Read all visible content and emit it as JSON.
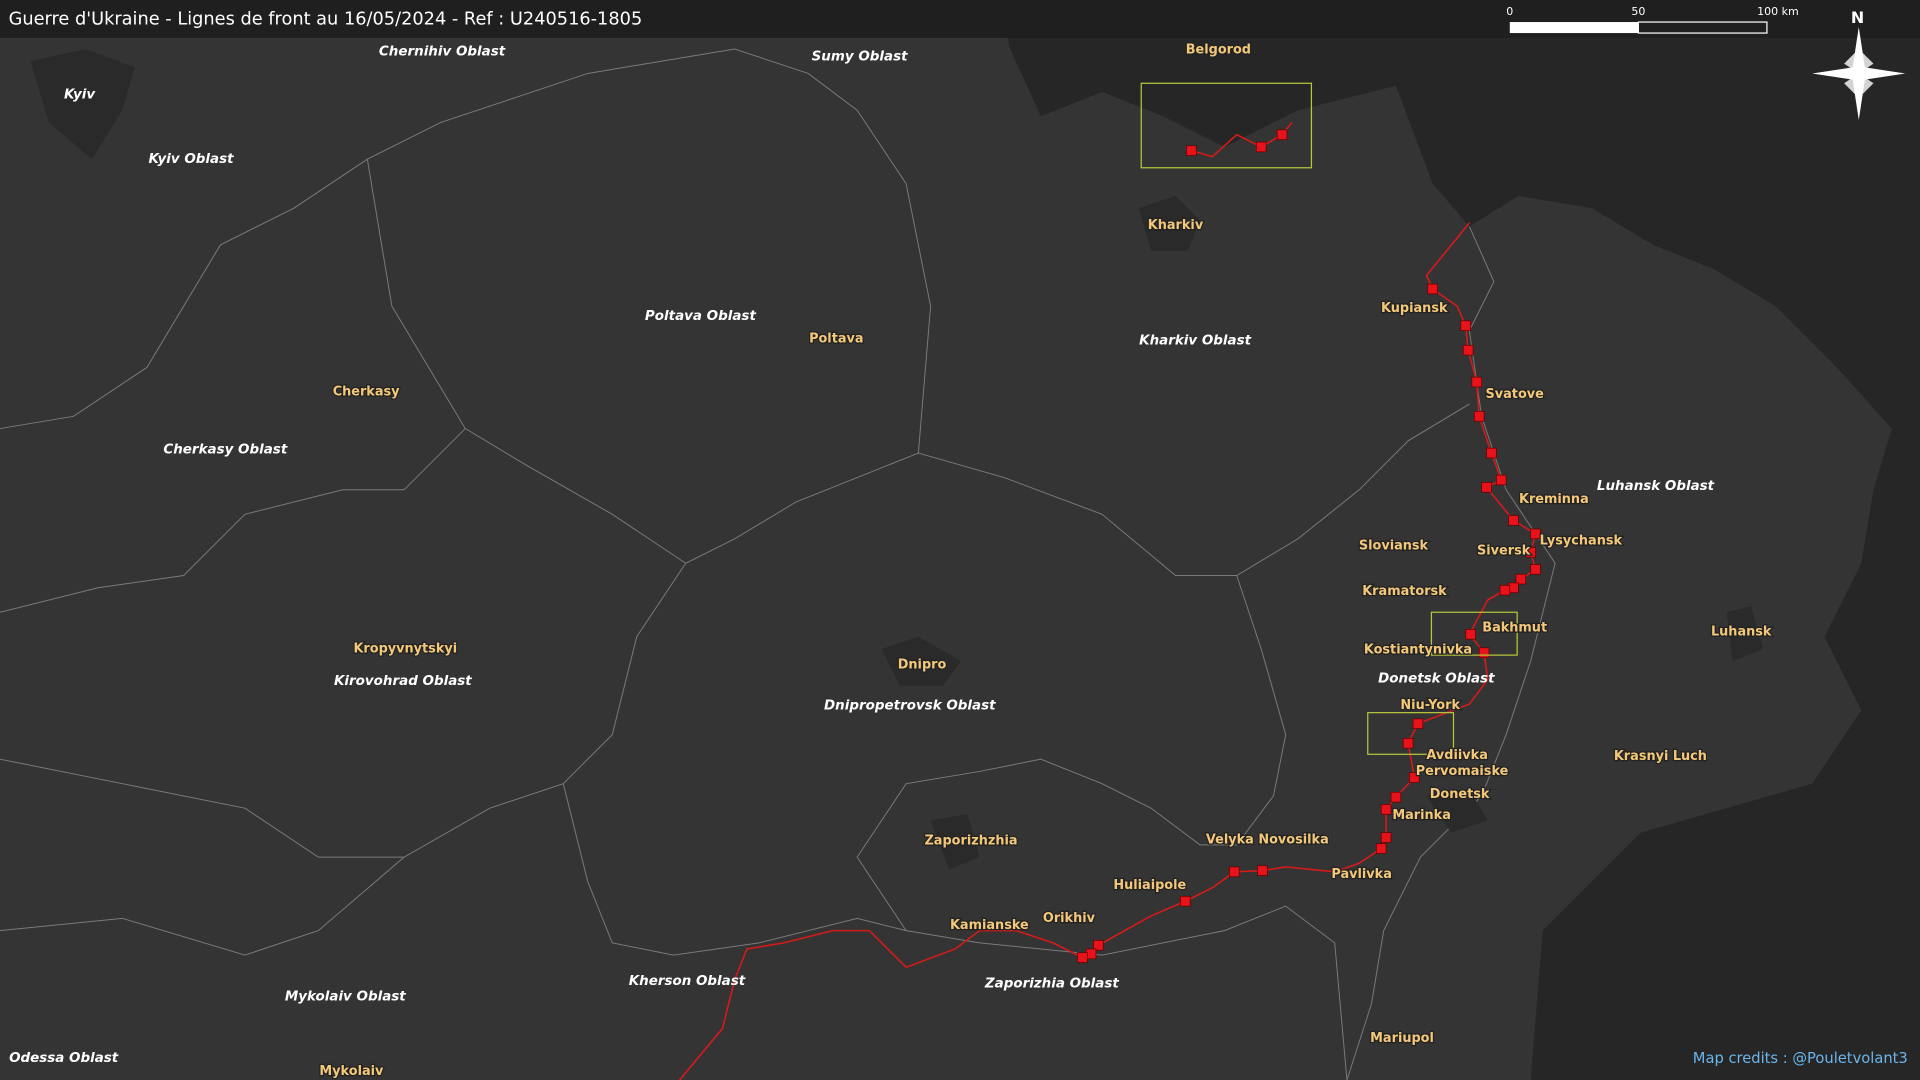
{
  "header": {
    "title": "Guerre d'Ukraine - Lignes de front au 16/05/2024 - Ref : U240516-1805"
  },
  "scale_bar": {
    "labels": [
      "0",
      "50",
      "100 km"
    ]
  },
  "compass": {
    "label": "N"
  },
  "oblasts": [
    "Kyiv",
    "Chernihiv Oblast",
    "Sumy Oblast",
    "Kyiv Oblast",
    "Poltava Oblast",
    "Kharkiv Oblast",
    "Cherkasy Oblast",
    "Luhansk Oblast",
    "Donetsk Oblast",
    "Kirovohrad Oblast",
    "Dnipropetrovsk Oblast",
    "Kherson Oblast",
    "Zaporizhia Oblast",
    "Mykolaiv Oblast",
    "Odessa Oblast"
  ],
  "cities": [
    "Belgorod",
    "Kharkiv",
    "Poltava",
    "Kupiansk",
    "Svatove",
    "Cherkasy",
    "Kreminna",
    "Lysychansk",
    "Sloviansk",
    "Siversk",
    "Kramatorsk",
    "Bakhmut",
    "Kostiantynivka",
    "Luhansk",
    "Kropyvnytskyi",
    "Dnipro",
    "Niu-York",
    "Avdiivka",
    "Pervomaiske",
    "Krasnyi Luch",
    "Donetsk",
    "Marinka",
    "Zaporizhzhia",
    "Velyka Novosilka",
    "Pavlivka",
    "Huliaipole",
    "Orikhiv",
    "Kamianske",
    "Mariupol",
    "Mykolaiv"
  ],
  "credits": "Map credits : @Pouletvolant3"
}
